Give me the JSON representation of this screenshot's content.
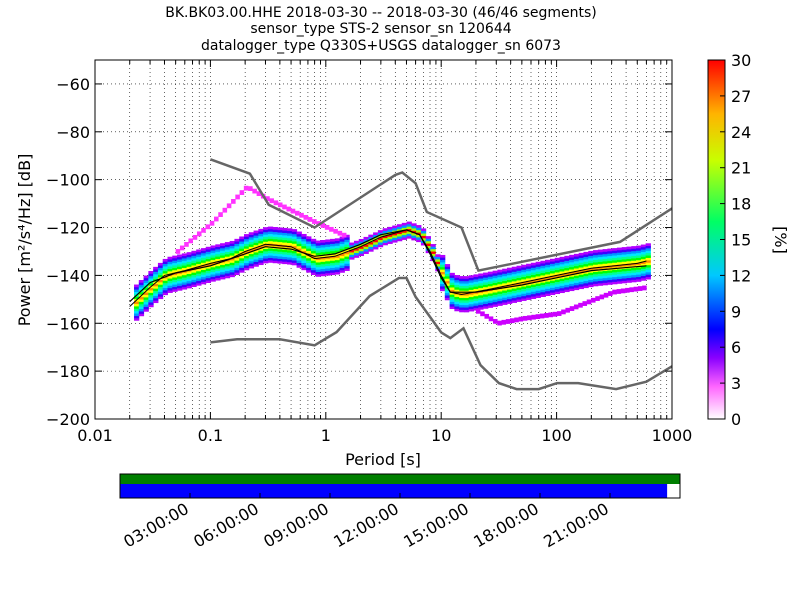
{
  "title_lines": [
    "BK.BK03.00.HHE   2018-03-30 -- 2018-03-30  (46/46 segments)",
    "sensor_type STS-2 sensor_sn 120644",
    "datalogger_type Q330S+USGS datalogger_sn 6073"
  ],
  "colors": {
    "nlnm_nhnm": "#666666",
    "mode_line": "#000000",
    "coverage_top": "#007f00",
    "coverage_bottom": "#0000ff",
    "colormap_stops": [
      "#ffffff",
      "#8a00ff",
      "#0000ff",
      "#00c8ff",
      "#00ff64",
      "#c8ff00",
      "#ffb400",
      "#ff0000"
    ]
  },
  "chart_data": {
    "type": "heatmap",
    "description": "probabilistic power spectral density",
    "xlabel": "Period [s]",
    "ylabel": "Power [m²/s⁴/Hz] [dB]",
    "xscale": "log",
    "xlim": [
      0.01,
      1000
    ],
    "ylim": [
      -200,
      -50
    ],
    "x_ticks": [
      {
        "v": 0.01,
        "label": "0.01"
      },
      {
        "v": 0.1,
        "label": "0.1"
      },
      {
        "v": 1,
        "label": "1"
      },
      {
        "v": 10,
        "label": "10"
      },
      {
        "v": 100,
        "label": "100"
      },
      {
        "v": 1000,
        "label": "1000"
      }
    ],
    "y_ticks": [
      {
        "v": -60,
        "label": "−60"
      },
      {
        "v": -80,
        "label": "−80"
      },
      {
        "v": -100,
        "label": "−100"
      },
      {
        "v": -120,
        "label": "−120"
      },
      {
        "v": -140,
        "label": "−140"
      },
      {
        "v": -160,
        "label": "−160"
      },
      {
        "v": -180,
        "label": "−180"
      },
      {
        "v": -200,
        "label": "−200"
      }
    ],
    "colorbar": {
      "label": "[%]",
      "range": [
        0,
        30
      ],
      "ticks": [
        "0",
        "3",
        "6",
        "9",
        "12",
        "15",
        "18",
        "21",
        "24",
        "27",
        "30"
      ]
    },
    "nhnm": [
      [
        0.1,
        -91.5
      ],
      [
        0.22,
        -97.5
      ],
      [
        0.32,
        -110.5
      ],
      [
        0.8,
        -120
      ],
      [
        4,
        -98
      ],
      [
        4.6,
        -97
      ],
      [
        6,
        -101.5
      ],
      [
        7.5,
        -113.5
      ],
      [
        15,
        -120
      ],
      [
        21,
        -138
      ],
      [
        354,
        -126
      ],
      [
        1000,
        -112
      ]
    ],
    "nlnm": [
      [
        0.1,
        -168
      ],
      [
        0.17,
        -166.7
      ],
      [
        0.4,
        -166.7
      ],
      [
        0.8,
        -169.2
      ],
      [
        1.24,
        -163.7
      ],
      [
        2.4,
        -148.6
      ],
      [
        4.3,
        -141.1
      ],
      [
        5,
        -141.1
      ],
      [
        6,
        -149
      ],
      [
        10,
        -163.8
      ],
      [
        12,
        -166.2
      ],
      [
        15.6,
        -162.1
      ],
      [
        21.9,
        -177.5
      ],
      [
        31.6,
        -185
      ],
      [
        45,
        -187.5
      ],
      [
        70,
        -187.5
      ],
      [
        101,
        -185
      ],
      [
        154,
        -185
      ],
      [
        328,
        -187.5
      ],
      [
        600,
        -184.4
      ],
      [
        1000,
        -178
      ]
    ],
    "mode": [
      [
        0.02,
        -153
      ],
      [
        0.03,
        -145
      ],
      [
        0.04,
        -140
      ],
      [
        0.06,
        -138
      ],
      [
        0.1,
        -135
      ],
      [
        0.15,
        -133
      ],
      [
        0.2,
        -130
      ],
      [
        0.3,
        -127
      ],
      [
        0.5,
        -128
      ],
      [
        0.8,
        -133
      ],
      [
        1.2,
        -132
      ],
      [
        2,
        -128
      ],
      [
        3,
        -124
      ],
      [
        5,
        -121
      ],
      [
        6.5,
        -123
      ],
      [
        8,
        -130
      ],
      [
        10,
        -140
      ],
      [
        12,
        -147
      ],
      [
        15,
        -148
      ],
      [
        25,
        -146
      ],
      [
        50,
        -143
      ],
      [
        100,
        -140
      ],
      [
        200,
        -137
      ],
      [
        500,
        -135
      ],
      [
        600,
        -134
      ]
    ],
    "mean": [
      [
        0.02,
        -151
      ],
      [
        0.03,
        -143
      ],
      [
        0.05,
        -139
      ],
      [
        0.1,
        -136
      ],
      [
        0.2,
        -131
      ],
      [
        0.3,
        -128
      ],
      [
        0.5,
        -129
      ],
      [
        0.8,
        -132
      ],
      [
        1.2,
        -131
      ],
      [
        2,
        -127
      ],
      [
        3,
        -123
      ],
      [
        5,
        -121
      ],
      [
        6.5,
        -123
      ],
      [
        8,
        -131
      ],
      [
        10,
        -141
      ],
      [
        12,
        -147
      ],
      [
        20,
        -147
      ],
      [
        50,
        -144
      ],
      [
        100,
        -141
      ],
      [
        200,
        -138
      ],
      [
        600,
        -136
      ]
    ],
    "pct_outliers_high": [
      [
        0.05,
        -130
      ],
      [
        0.1,
        -118
      ],
      [
        0.2,
        -103
      ],
      [
        0.3,
        -108
      ],
      [
        0.8,
        -118
      ],
      [
        1.5,
        -124
      ]
    ],
    "pct_outliers_low": [
      [
        20,
        -155
      ],
      [
        30,
        -160
      ],
      [
        50,
        -158
      ],
      [
        100,
        -156
      ],
      [
        300,
        -147
      ],
      [
        600,
        -145
      ]
    ],
    "coverage": {
      "xtick_labels": [
        "03:00:00",
        "06:00:00",
        "09:00:00",
        "12:00:00",
        "15:00:00",
        "18:00:00",
        "21:00:00"
      ],
      "xtick_hours": [
        3,
        6,
        9,
        12,
        15,
        18,
        21
      ],
      "range_hours": [
        0,
        24
      ],
      "data_fraction": 0.977
    }
  }
}
